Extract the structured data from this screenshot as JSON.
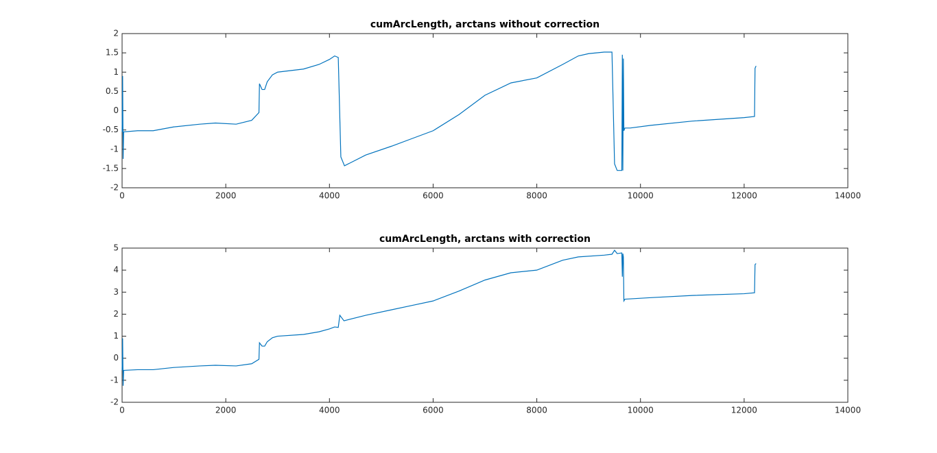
{
  "chart_data": [
    {
      "type": "line",
      "title": "cumArcLength, arctans without correction",
      "x": [
        0,
        10,
        20,
        30,
        300,
        600,
        1000,
        1500,
        1800,
        2200,
        2500,
        2640,
        2650,
        2700,
        2750,
        2800,
        2900,
        3000,
        3500,
        3800,
        4000,
        4100,
        4170,
        4220,
        4290,
        4700,
        5200,
        5600,
        6000,
        6500,
        7000,
        7500,
        8000,
        8500,
        8800,
        9000,
        9300,
        9450,
        9500,
        9550,
        9640,
        9650,
        9660,
        9670,
        9680,
        9700,
        9800,
        10200,
        11000,
        12000,
        12200,
        12210,
        12230
      ],
      "values": [
        -0.55,
        0.9,
        -1.25,
        -0.55,
        -0.52,
        -0.52,
        -0.42,
        -0.35,
        -0.32,
        -0.35,
        -0.25,
        -0.05,
        0.7,
        0.55,
        0.55,
        0.75,
        0.93,
        1.0,
        1.08,
        1.2,
        1.33,
        1.42,
        1.38,
        -1.2,
        -1.43,
        -1.15,
        -0.92,
        -0.72,
        -0.52,
        -0.1,
        0.4,
        0.72,
        0.85,
        1.2,
        1.42,
        1.48,
        1.52,
        1.52,
        -1.38,
        -1.55,
        -1.55,
        1.45,
        -1.55,
        1.35,
        -0.52,
        -0.45,
        -0.45,
        -0.38,
        -0.27,
        -0.18,
        -0.15,
        1.1,
        1.16
      ],
      "color": "#0072bd",
      "xlim": [
        0,
        14000
      ],
      "xticks": [
        0,
        2000,
        4000,
        6000,
        8000,
        10000,
        12000,
        14000
      ],
      "ylim": [
        -2,
        2
      ],
      "yticks": [
        -2,
        -1.5,
        -1,
        -0.5,
        0,
        0.5,
        1,
        1.5,
        2
      ]
    },
    {
      "type": "line",
      "title": "cumArcLength, arctans with correction",
      "x": [
        0,
        10,
        20,
        30,
        300,
        600,
        1000,
        1500,
        1800,
        2200,
        2500,
        2640,
        2650,
        2700,
        2750,
        2800,
        2900,
        3000,
        3500,
        3800,
        4000,
        4100,
        4170,
        4200,
        4280,
        4700,
        5200,
        5600,
        6000,
        6500,
        7000,
        7500,
        8000,
        8500,
        8800,
        9300,
        9450,
        9500,
        9550,
        9640,
        9650,
        9660,
        9670,
        9680,
        9700,
        10200,
        11000,
        12000,
        12200,
        12210,
        12230
      ],
      "values": [
        -0.55,
        0.9,
        -1.25,
        -0.55,
        -0.52,
        -0.52,
        -0.42,
        -0.35,
        -0.32,
        -0.35,
        -0.25,
        -0.05,
        0.7,
        0.55,
        0.55,
        0.75,
        0.93,
        1.0,
        1.08,
        1.2,
        1.33,
        1.42,
        1.4,
        1.95,
        1.7,
        1.95,
        2.2,
        2.4,
        2.6,
        3.05,
        3.55,
        3.88,
        4.0,
        4.45,
        4.6,
        4.68,
        4.72,
        4.9,
        4.75,
        4.78,
        3.7,
        4.75,
        4.6,
        2.6,
        2.68,
        2.75,
        2.85,
        2.93,
        2.97,
        4.25,
        4.3
      ],
      "color": "#0072bd",
      "xlim": [
        0,
        14000
      ],
      "xticks": [
        0,
        2000,
        4000,
        6000,
        8000,
        10000,
        12000,
        14000
      ],
      "ylim": [
        -2,
        5
      ],
      "yticks": [
        -2,
        -1,
        0,
        1,
        2,
        3,
        4,
        5
      ]
    }
  ]
}
